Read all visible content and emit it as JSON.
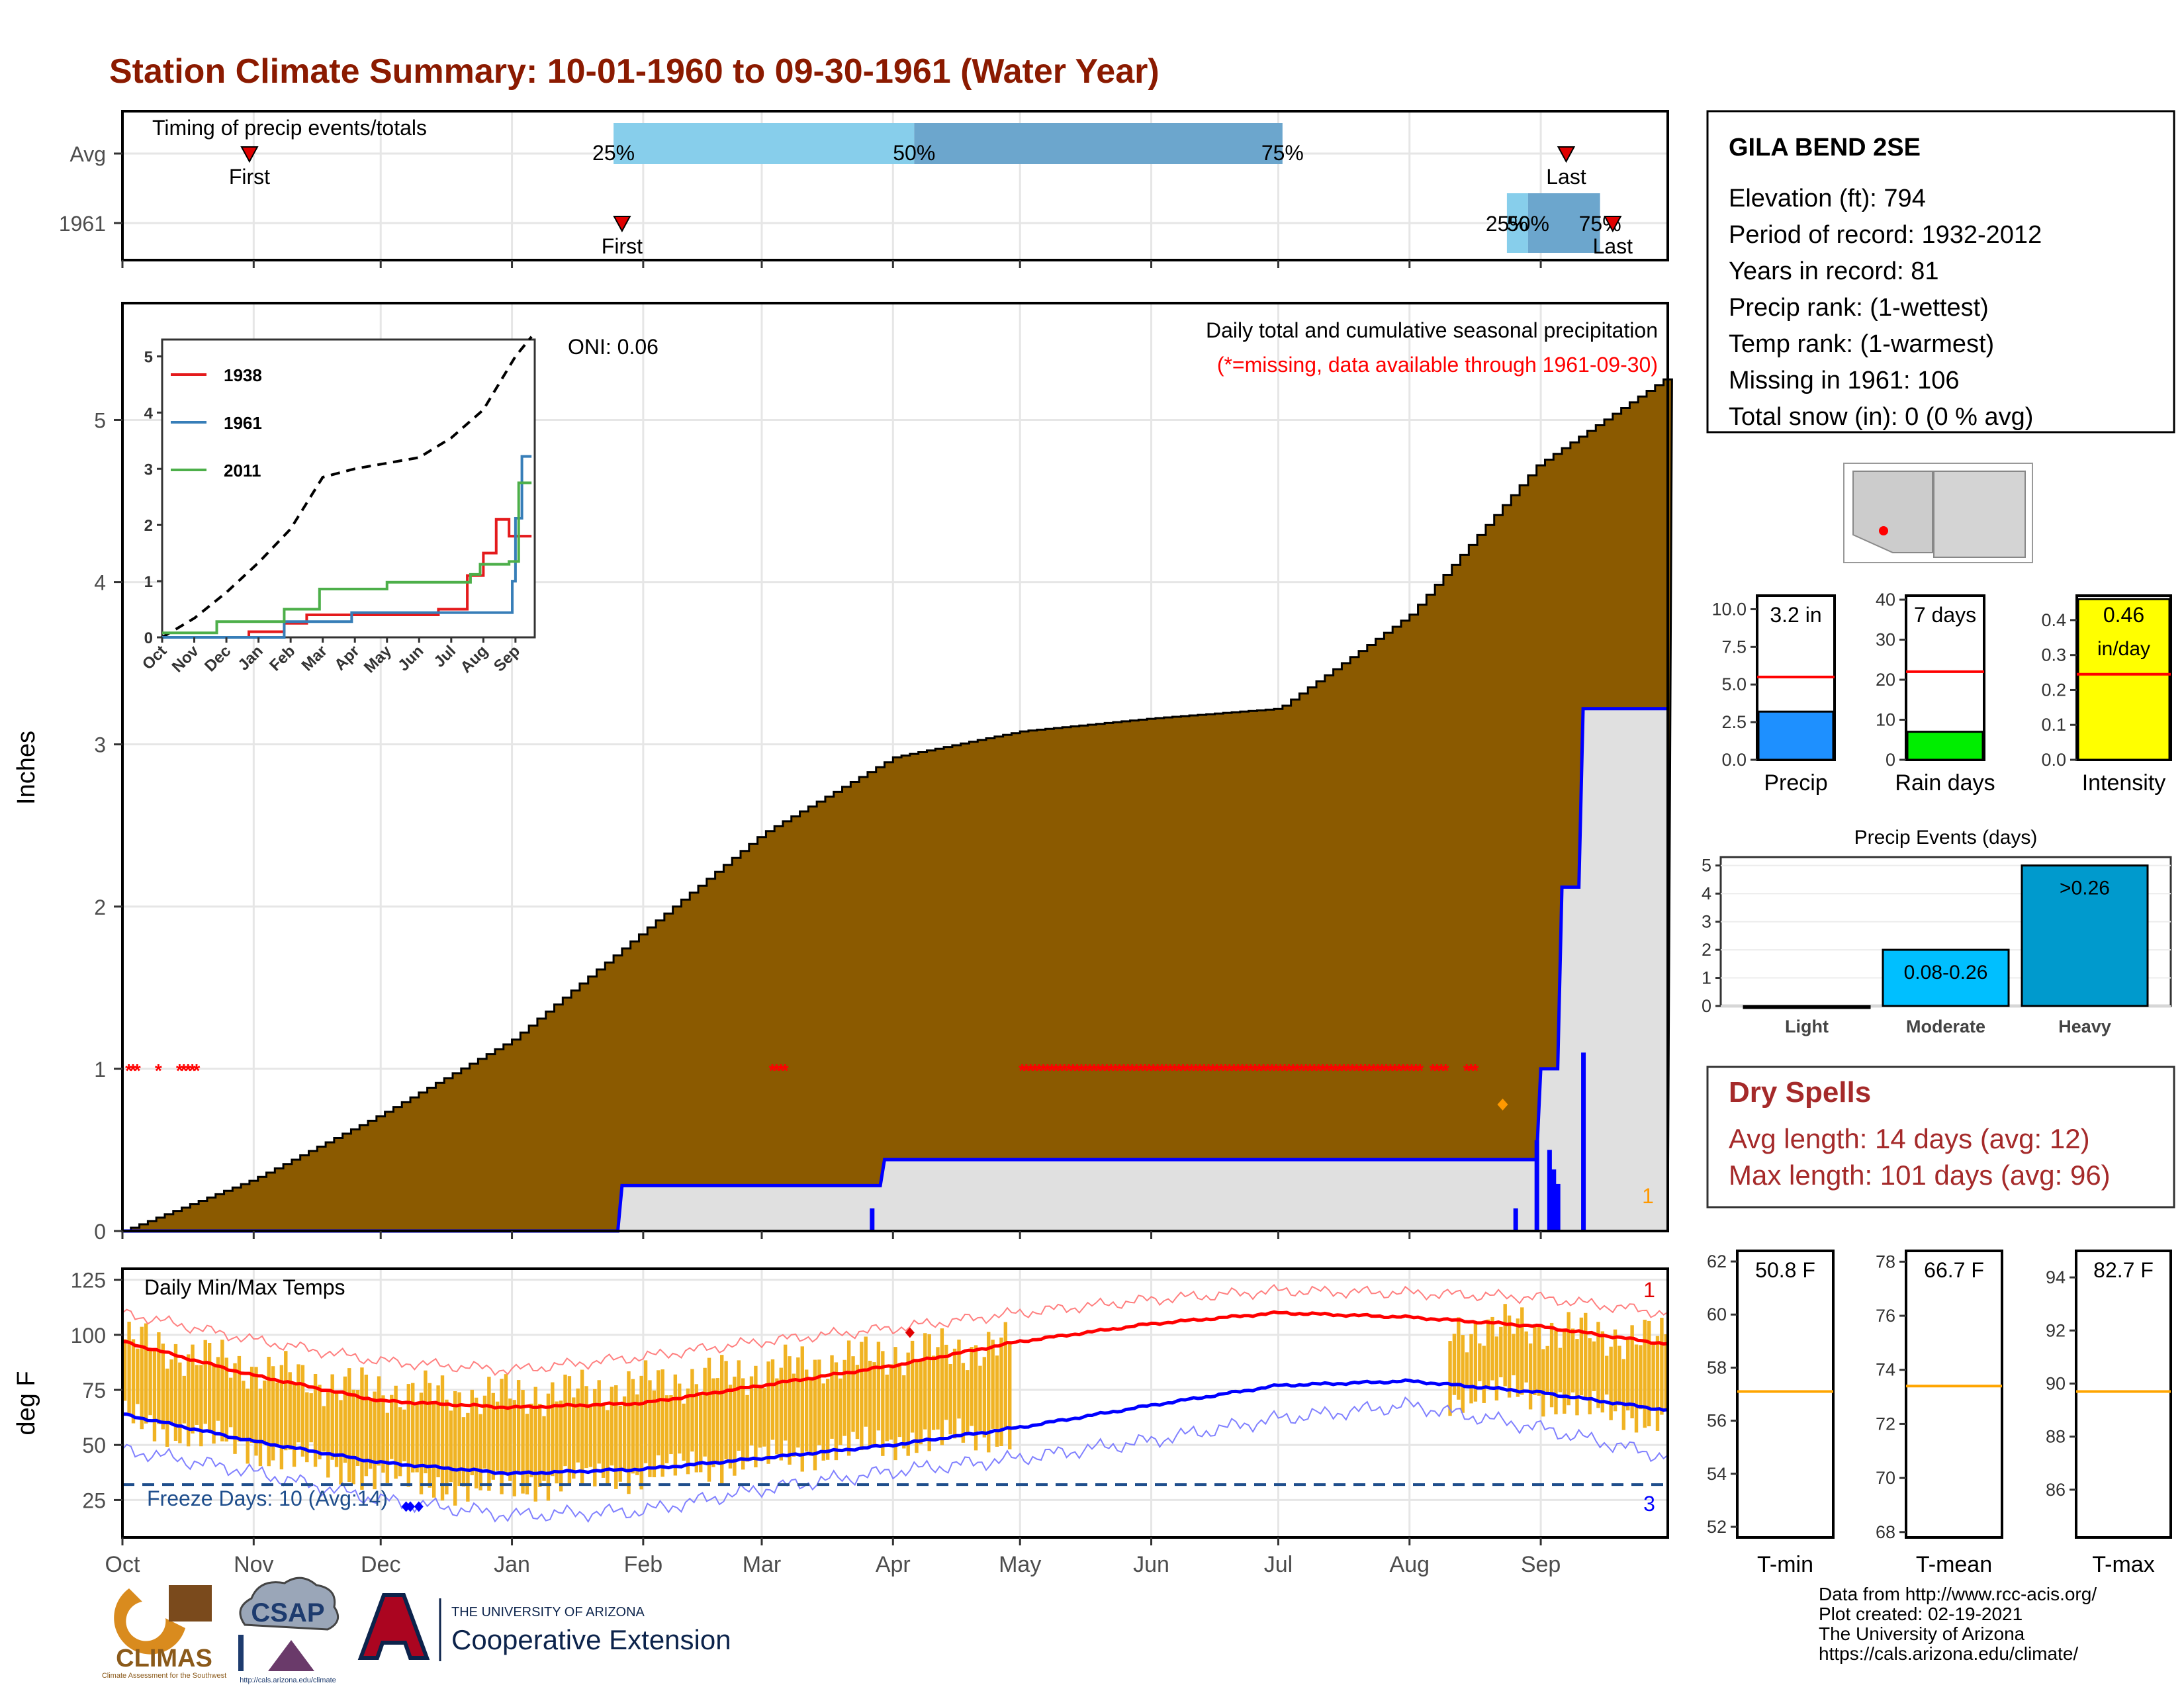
{
  "header": {
    "title": "Station Climate Summary: 10-01-1960 to 09-30-1961 (Water Year)"
  },
  "colors": {
    "title": "#8b1a00",
    "precip_fill": "#8b5a00",
    "obs_fill": "#e0e0e0",
    "obs_line": "#0000ff",
    "missing": "#ff0000",
    "bar_light": "#87ceeb",
    "bar_dark": "#6ca6cd",
    "temp_bar": "#f0b323",
    "tmax_avg": "#ff0000",
    "tmin_avg": "#0000ff",
    "freeze_line": "#1f4e8c",
    "dry_text": "#a52a2a"
  },
  "timing": {
    "label": "Timing of precip events/totals",
    "rows": [
      {
        "label": "Avg",
        "first_day": 30,
        "last_day": 341,
        "q25": 116,
        "q50": 187,
        "q75": 274,
        "first_label": "First",
        "last_label": "Last",
        "q25_label": "25%",
        "q50_label": "50%",
        "q75_label": "75%"
      },
      {
        "label": "1961",
        "first_day": 118,
        "last_day": 352,
        "q25": 327,
        "q50": 332,
        "q75": 349,
        "first_label": "First",
        "last_label": "Last",
        "q25_label": "25%",
        "q50_label": "50%",
        "q75_label": "75%"
      }
    ]
  },
  "precip_panel": {
    "ylabel": "Inches",
    "y_ticks": [
      "0",
      "1",
      "2",
      "3",
      "4",
      "5"
    ],
    "caption": "Daily total and cumulative seasonal precipitation",
    "missing_note": "(*=missing, data available through 1961-09-30)",
    "oni": "ONI: 0.06",
    "count_label": "1",
    "avg_cum": {
      "days": [
        0,
        31,
        61,
        92,
        123,
        151,
        182,
        212,
        243,
        273,
        304,
        334,
        364
      ],
      "values": [
        0,
        0.32,
        0.72,
        1.18,
        1.85,
        2.45,
        2.92,
        3.08,
        3.16,
        3.22,
        3.8,
        4.72,
        5.25
      ]
    },
    "obs_cum": {
      "days": [
        0,
        117,
        118,
        179,
        180,
        334,
        335,
        339,
        340,
        344,
        345,
        365
      ],
      "values": [
        0,
        0,
        0.28,
        0.28,
        0.44,
        0.44,
        1.0,
        1.0,
        2.12,
        2.12,
        3.22,
        3.22
      ]
    },
    "daily_bars": [
      {
        "day": 177,
        "value": 0.14
      },
      {
        "day": 329,
        "value": 0.14
      },
      {
        "day": 334,
        "value": 0.56
      },
      {
        "day": 337,
        "value": 0.5
      },
      {
        "day": 338,
        "value": 0.38
      },
      {
        "day": 339,
        "value": 0.29
      },
      {
        "day": 345,
        "value": 1.1
      }
    ],
    "missing_days": [
      [
        1,
        3
      ],
      [
        8,
        8
      ],
      [
        13,
        17
      ],
      [
        153,
        156
      ],
      [
        212,
        306
      ],
      [
        309,
        312
      ],
      [
        317,
        319
      ]
    ],
    "x_ticks": [
      "Oct",
      "Nov",
      "Dec",
      "Jan",
      "Feb",
      "Mar",
      "Apr",
      "May",
      "Jun",
      "Jul",
      "Aug",
      "Sep"
    ]
  },
  "inset": {
    "y_ticks": [
      "0",
      "1",
      "2",
      "3",
      "4",
      "5"
    ],
    "x_ticks": [
      "Oct",
      "Nov",
      "Dec",
      "Jan",
      "Feb",
      "Mar",
      "Apr",
      "May",
      "Jun",
      "Jul",
      "Aug",
      "Sep"
    ],
    "legend": [
      "1938",
      "1961",
      "2011"
    ],
    "series": [
      {
        "name": "1938",
        "color": "#e41a1c",
        "x": [
          0,
          2.7,
          2.7,
          3.8,
          3.8,
          4.5,
          4.5,
          8.6,
          8.6,
          9.5,
          9.5,
          10.0,
          10.0,
          10.4,
          10.4,
          10.8,
          10.8,
          11.5
        ],
        "y": [
          0,
          0,
          0.1,
          0.1,
          0.25,
          0.25,
          0.4,
          0.4,
          0.5,
          0.5,
          1.1,
          1.1,
          1.5,
          1.5,
          2.1,
          2.1,
          1.8,
          1.8
        ]
      },
      {
        "name": "1961",
        "color": "#377eb8",
        "x": [
          0,
          3.8,
          3.8,
          5.9,
          5.9,
          10.9,
          10.9,
          11.0,
          11.0,
          11.2,
          11.2,
          11.3,
          11.3,
          11.5
        ],
        "y": [
          0,
          0,
          0.28,
          0.28,
          0.44,
          0.44,
          1.0,
          1.0,
          2.12,
          2.12,
          3.22,
          3.22,
          3.22,
          3.22
        ]
      },
      {
        "name": "2011",
        "color": "#4daf4a",
        "x": [
          0,
          1.7,
          1.7,
          3.8,
          3.8,
          4.9,
          4.9,
          7.0,
          7.0,
          9.6,
          9.6,
          9.9,
          9.9,
          10.8,
          10.8,
          11.1,
          11.1,
          11.5
        ],
        "y": [
          0.08,
          0.08,
          0.28,
          0.28,
          0.5,
          0.5,
          0.86,
          0.86,
          0.98,
          0.98,
          1.12,
          1.12,
          1.3,
          1.3,
          1.35,
          1.35,
          2.75,
          2.75
        ]
      }
    ],
    "avg": {
      "x": [
        0,
        1,
        2,
        3,
        4,
        5,
        6,
        7,
        8,
        9,
        10,
        11,
        11.5
      ],
      "y": [
        0,
        0.34,
        0.8,
        1.33,
        1.93,
        2.85,
        3.0,
        3.1,
        3.2,
        3.55,
        4.05,
        5.0,
        5.35
      ]
    }
  },
  "temp_panel": {
    "label": "Daily Min/Max Temps",
    "ylabel": "deg F",
    "y_ticks": [
      "25",
      "50",
      "75",
      "100",
      "125"
    ],
    "freeze_label": "Freeze Days: 10 (Avg:14)",
    "count_high": "1",
    "count_low": "3",
    "x_ticks": [
      "Oct",
      "Nov",
      "Dec",
      "Jan",
      "Feb",
      "Mar",
      "Apr",
      "May",
      "Jun",
      "Jul",
      "Aug",
      "Sep"
    ],
    "avg_tmax": {
      "days": [
        0,
        30,
        61,
        92,
        123,
        151,
        182,
        212,
        243,
        273,
        304,
        334,
        364
      ],
      "values": [
        97,
        82,
        70,
        67,
        69,
        77,
        86,
        97,
        105,
        110,
        108,
        104,
        96
      ]
    },
    "avg_tmin": {
      "days": [
        0,
        30,
        61,
        92,
        123,
        151,
        182,
        212,
        243,
        273,
        304,
        334,
        364
      ],
      "values": [
        64,
        52,
        42,
        37,
        39,
        44,
        50,
        58,
        68,
        77,
        79,
        74,
        66
      ]
    },
    "rec_high": {
      "days": [
        0,
        30,
        61,
        92,
        123,
        151,
        182,
        212,
        243,
        273,
        304,
        334,
        364
      ],
      "values": [
        110,
        98,
        88,
        84,
        90,
        97,
        103,
        110,
        116,
        120,
        119,
        117,
        110
      ]
    },
    "rec_low": {
      "days": [
        0,
        30,
        61,
        92,
        123,
        151,
        182,
        212,
        243,
        273,
        304,
        334,
        364
      ],
      "values": [
        48,
        38,
        25,
        18,
        20,
        30,
        38,
        44,
        52,
        62,
        68,
        58,
        45
      ]
    },
    "observed_ranges": [
      {
        "from": 0,
        "to": 134,
        "tmax": [
          98,
          86,
          76,
          72,
          74,
          80
        ],
        "tmin": [
          62,
          50,
          38,
          30,
          34,
          40
        ]
      },
      {
        "from": 135,
        "to": 209,
        "tmax": [
          80,
          86,
          92,
          95
        ],
        "tmin": [
          40,
          46,
          52,
          55
        ]
      },
      {
        "from": 313,
        "to": 364,
        "tmax": [
          102,
          104,
          100,
          98
        ],
        "tmin": [
          72,
          74,
          66,
          62
        ]
      }
    ],
    "freeze_days": [
      67,
      68,
      70
    ],
    "record_markers": [
      186
    ]
  },
  "station": {
    "name": "GILA BEND 2SE",
    "lines": [
      "Elevation (ft): 794",
      "Period of record: 1932-2012",
      "Years in record: 81",
      "Precip rank:  (1-wettest)",
      "Temp rank:  (1-warmest)",
      "Missing in 1961: 106",
      "Total snow (in): 0 (0 % avg)"
    ]
  },
  "mini_bars": [
    {
      "label": "Precip",
      "value_label": "3.2 in",
      "value": 3.2,
      "avg": 5.5,
      "ymax": 10.9,
      "ticks": [
        "0.0",
        "2.5",
        "5.0",
        "7.5",
        "10.0"
      ],
      "tick_values": [
        0,
        2.5,
        5.0,
        7.5,
        10.0
      ],
      "color": "#1e90ff"
    },
    {
      "label": "Rain days",
      "value_label": "7 days",
      "value": 7,
      "avg": 22,
      "ymax": 41,
      "ticks": [
        "0",
        "10",
        "20",
        "30",
        "40"
      ],
      "tick_values": [
        0,
        10,
        20,
        30,
        40
      ],
      "color": "#00ee00"
    },
    {
      "label": "Intensity",
      "value_label": "0.46",
      "value_label2": "in/day",
      "value": 0.46,
      "avg": 0.245,
      "ymax": 0.47,
      "ticks": [
        "0.0",
        "0.1",
        "0.2",
        "0.3",
        "0.4"
      ],
      "tick_values": [
        0,
        0.1,
        0.2,
        0.3,
        0.4
      ],
      "color": "#ffff00"
    }
  ],
  "precip_events": {
    "title": "Precip Events (days)",
    "categories": [
      "Light",
      "Moderate",
      "Heavy"
    ],
    "values": [
      0,
      2,
      5
    ],
    "bar_labels": [
      "",
      "0.08-0.26",
      ">0.26"
    ],
    "colors": [
      "#ffffff",
      "#00bfff",
      "#009acd"
    ],
    "y_ticks": [
      "0",
      "1",
      "2",
      "3",
      "4",
      "5"
    ]
  },
  "dry_spells": {
    "title": "Dry Spells",
    "avg_length": "Avg length: 14 days (avg: 12)",
    "max_length": "Max length: 101 days (avg: 96)"
  },
  "temp_boxes": [
    {
      "label": "T-min",
      "value_label": "50.8 F",
      "avg": 57.1,
      "ymin": 51.6,
      "ymax": 62.4,
      "ticks": [
        "52",
        "54",
        "56",
        "58",
        "60",
        "62"
      ],
      "tick_values": [
        52,
        54,
        56,
        58,
        60,
        62
      ]
    },
    {
      "label": "T-mean",
      "value_label": "66.7 F",
      "avg": 73.4,
      "ymin": 67.8,
      "ymax": 78.4,
      "ticks": [
        "68",
        "70",
        "72",
        "74",
        "76",
        "78"
      ],
      "tick_values": [
        68,
        70,
        72,
        74,
        76,
        78
      ]
    },
    {
      "label": "T-max",
      "value_label": "82.7 F",
      "avg": 89.7,
      "ymin": 84.2,
      "ymax": 95.0,
      "ticks": [
        "86",
        "88",
        "90",
        "92",
        "94"
      ],
      "tick_values": [
        86,
        88,
        90,
        92,
        94
      ]
    }
  ],
  "footer": {
    "lines": [
      "Data from http://www.rcc-acis.org/",
      "Plot created: 02-19-2021",
      "The University of Arizona",
      "https://cals.arizona.edu/climate/"
    ]
  },
  "logos": {
    "climas": "CLIMAS",
    "climas_sub": "Climate Assessment for the Southwest",
    "csap": "CSAP",
    "csap_url": "http://cals.arizona.edu/climate",
    "ua_line1": "THE UNIVERSITY OF ARIZONA",
    "ua_line2": "Cooperative Extension"
  }
}
